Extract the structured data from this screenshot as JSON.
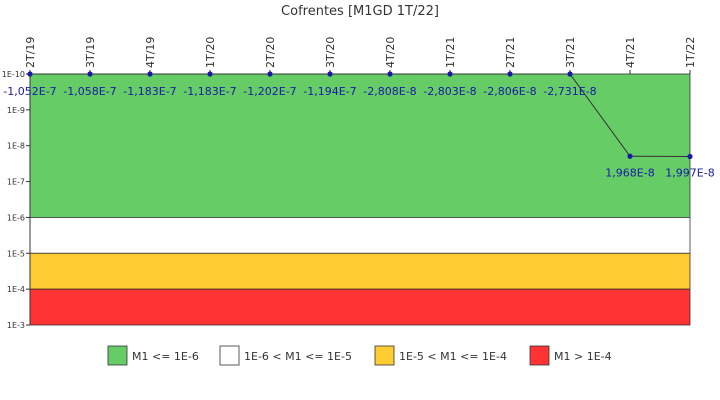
{
  "chart_data": {
    "type": "line",
    "title": "Cofrentes [M1GD 1T/22]",
    "categories": [
      "2T/19",
      "3T/19",
      "4T/19",
      "1T/20",
      "2T/20",
      "3T/20",
      "4T/20",
      "1T/21",
      "2T/21",
      "3T/21",
      "4T/21",
      "1T/22"
    ],
    "series": [
      {
        "values": [
          -1.052e-07,
          -1.058e-07,
          -1.183e-07,
          -1.183e-07,
          -1.202e-07,
          -1.194e-07,
          -2.808e-08,
          -2.803e-08,
          -2.806e-08,
          -2.731e-08,
          1.968e-08,
          1.997e-08
        ],
        "value_labels": [
          "-1,052E-7",
          "-1,058E-7",
          "-1,183E-7",
          "-1,183E-7",
          "-1,202E-7",
          "-1,194E-7",
          "-2,808E-8",
          "-2,803E-8",
          "-2,806E-8",
          "-2,731E-8",
          "1,968E-8",
          "1,997E-8"
        ],
        "color": "#1a1aa6"
      }
    ],
    "y_scale": "log",
    "y_axis": "inverted",
    "ylim": [
      1e-10,
      0.001
    ],
    "y_ticks": [
      {
        "value": 1e-10,
        "label": "1E-10"
      },
      {
        "value": 1e-09,
        "label": "1E-9"
      },
      {
        "value": 1e-08,
        "label": "1E-8"
      },
      {
        "value": 1e-07,
        "label": "1E-7"
      },
      {
        "value": 1e-06,
        "label": "1E-6"
      },
      {
        "value": 1e-05,
        "label": "1E-5"
      },
      {
        "value": 0.0001,
        "label": "1E-4"
      },
      {
        "value": 0.001,
        "label": "1E-3"
      }
    ],
    "bands": [
      {
        "from": 1e-10,
        "to": 1e-06,
        "color": "#66cc66",
        "label": "M1 <= 1E-6"
      },
      {
        "from": 1e-06,
        "to": 1e-05,
        "color": "#ffffff",
        "label": "1E-6 < M1 <= 1E-5"
      },
      {
        "from": 1e-05,
        "to": 0.0001,
        "color": "#ffcc33",
        "label": "1E-5 < M1 <= 1E-4"
      },
      {
        "from": 0.0001,
        "to": 0.001,
        "color": "#ff3333",
        "label": "M1 > 1E-4"
      }
    ],
    "legend_position": "bottom",
    "grid": false
  }
}
